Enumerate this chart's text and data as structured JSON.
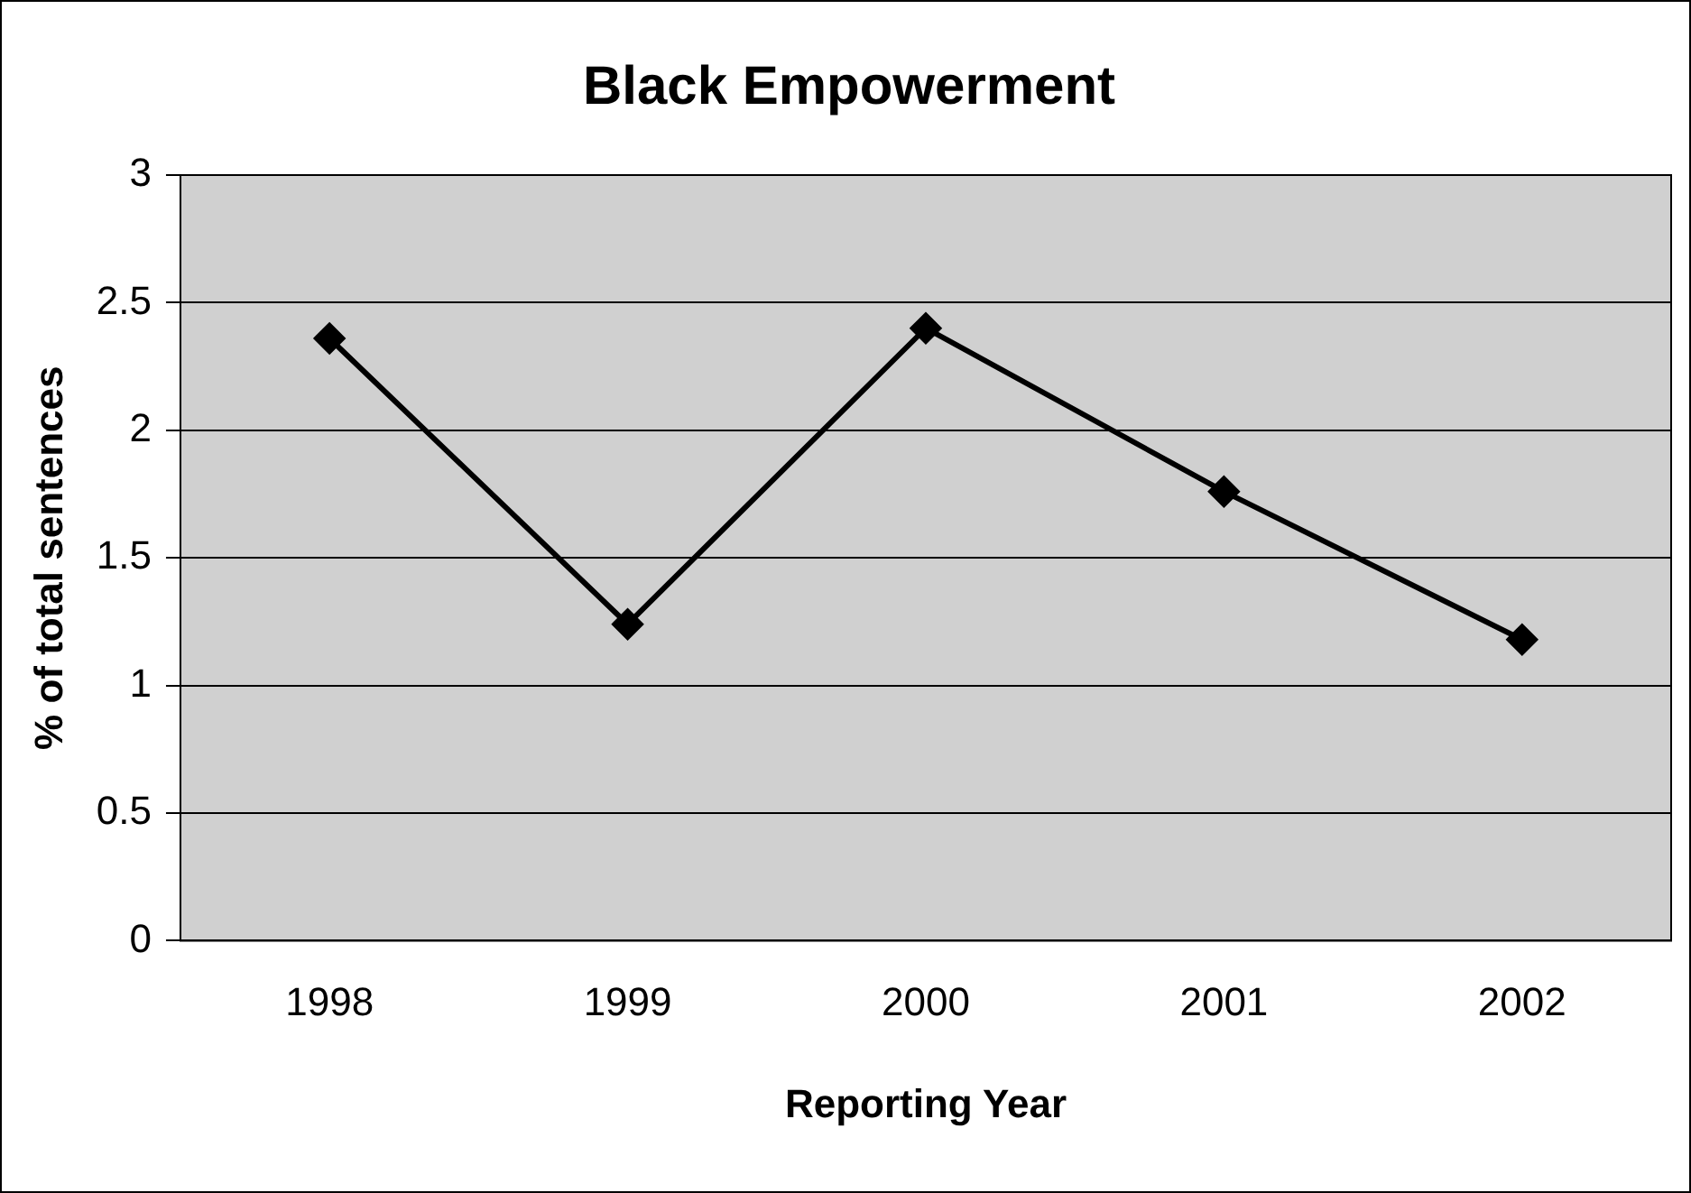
{
  "chart_data": {
    "type": "line",
    "title": "Black Empowerment",
    "xlabel": "Reporting Year",
    "ylabel": "% of total sentences",
    "categories": [
      "1998",
      "1999",
      "2000",
      "2001",
      "2002"
    ],
    "series": [
      {
        "color": "#000000",
        "values": [
          2.36,
          1.24,
          2.4,
          1.76,
          1.18
        ]
      }
    ],
    "ylim": [
      0,
      3
    ],
    "yticks": [
      0,
      0.5,
      1,
      1.5,
      2,
      2.5,
      3
    ],
    "grid": "y",
    "marker": "diamond",
    "line_style": "solid",
    "legend": false
  }
}
